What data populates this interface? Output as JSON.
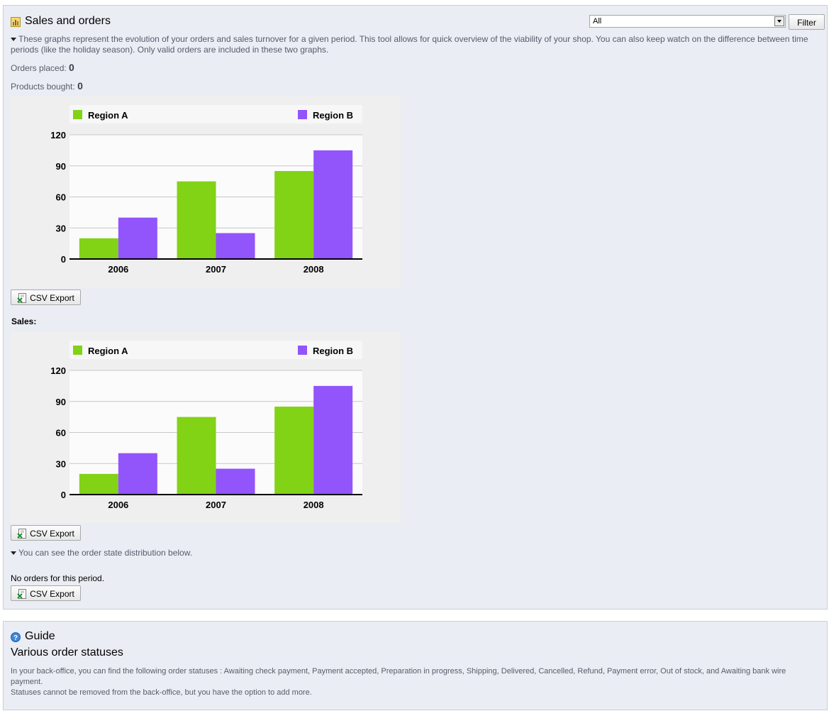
{
  "sales_panel": {
    "title": "Sales and orders",
    "icon": "chart-icon",
    "filter_select_value": "All",
    "filter_button": "Filter",
    "description": "These graphs represent the evolution of your orders and sales turnover for a given period. This tool allows for quick overview of the viability of your shop. You can also keep watch on the difference between time periods (like the holiday season). Only valid orders are included in these two graphs.",
    "orders_placed_label": "Orders placed:",
    "orders_placed_value": "0",
    "products_bought_label": "Products bought:",
    "products_bought_value": "0",
    "csv_export": "CSV Export",
    "sales_label": "Sales:",
    "distribution_text": "You can see the order state distribution below.",
    "no_orders": "No orders for this period."
  },
  "guide_panel": {
    "title": "Guide",
    "icon": "help-icon",
    "subtitle": "Various order statuses",
    "line1": "In your back-office, you can find the following order statuses : Awaiting check payment, Payment accepted, Preparation in progress, Shipping, Delivered, Cancelled, Refund, Payment error, Out of stock, and Awaiting bank wire payment.",
    "line2": "Statuses cannot be removed from the back-office, but you have the option to add more."
  },
  "colors": {
    "region_a": "#82d216",
    "region_b": "#9254fb"
  },
  "chart_data": [
    {
      "type": "bar",
      "categories": [
        "2006",
        "2007",
        "2008"
      ],
      "series": [
        {
          "name": "Region A",
          "values": [
            20,
            75,
            85
          ]
        },
        {
          "name": "Region B",
          "values": [
            40,
            25,
            105
          ]
        }
      ],
      "ylim": [
        0,
        120
      ],
      "yticks": [
        0,
        30,
        60,
        90,
        120
      ],
      "legend": "top",
      "grid": true
    },
    {
      "type": "bar",
      "categories": [
        "2006",
        "2007",
        "2008"
      ],
      "series": [
        {
          "name": "Region A",
          "values": [
            20,
            75,
            85
          ]
        },
        {
          "name": "Region B",
          "values": [
            40,
            25,
            105
          ]
        }
      ],
      "ylim": [
        0,
        120
      ],
      "yticks": [
        0,
        30,
        60,
        90,
        120
      ],
      "legend": "top",
      "grid": true
    }
  ]
}
